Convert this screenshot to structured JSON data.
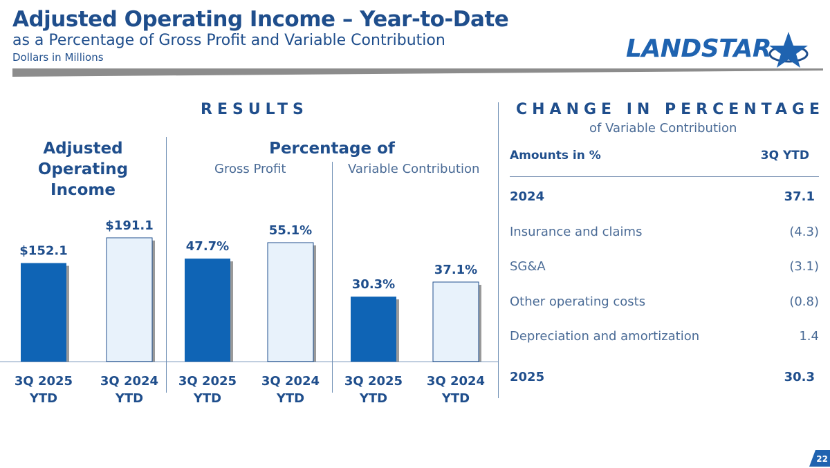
{
  "header": {
    "title": "Adjusted Operating Income – Year-to-Date",
    "subtitle": "as a Percentage of Gross Profit and Variable Contribution",
    "units": "Dollars in Millions",
    "logo_text": "LANDSTAR"
  },
  "results": {
    "heading": "RESULTS",
    "group_income": "Adjusted Operating Income",
    "group_percentage": "Percentage of",
    "sub_gross_profit": "Gross Profit",
    "sub_variable_contribution": "Variable Contribution"
  },
  "colors": {
    "current": "#0f64b5",
    "prior": "#e8f2fb",
    "prior_border": "#1f4e8c",
    "text": "#1f4e8c"
  },
  "chart_data": [
    {
      "type": "bar",
      "title": "Adjusted Operating Income",
      "unit": "$M",
      "categories": [
        "3Q 2025 YTD",
        "3Q 2024 YTD"
      ],
      "values": [
        152.1,
        191.1
      ],
      "labels": [
        "$152.1",
        "$191.1"
      ]
    },
    {
      "type": "bar",
      "title": "Percentage of Gross Profit",
      "unit": "%",
      "categories": [
        "3Q 2025 YTD",
        "3Q 2024 YTD"
      ],
      "values": [
        47.7,
        55.1
      ],
      "labels": [
        "47.7%",
        "55.1%"
      ]
    },
    {
      "type": "bar",
      "title": "Percentage of Variable Contribution",
      "unit": "%",
      "categories": [
        "3Q 2025 YTD",
        "3Q 2024 YTD"
      ],
      "values": [
        30.3,
        37.1
      ],
      "labels": [
        "30.3%",
        "37.1%"
      ]
    }
  ],
  "change": {
    "heading": "CHANGE IN PERCENTAGE",
    "subheading": "of Variable Contribution",
    "col_label": "Amounts in %",
    "col_value": "3Q YTD",
    "rows": [
      {
        "label": "2024",
        "value": "37.1",
        "bold": true
      },
      {
        "label": "Insurance and claims",
        "value": "(4.3)"
      },
      {
        "label": "SG&A",
        "value": "(3.1)"
      },
      {
        "label": "Other operating costs",
        "value": "(0.8)"
      },
      {
        "label": "Depreciation and amortization",
        "value": "1.4"
      },
      {
        "label": "2025",
        "value": "30.3",
        "bold": true
      }
    ]
  },
  "page_number": "22"
}
